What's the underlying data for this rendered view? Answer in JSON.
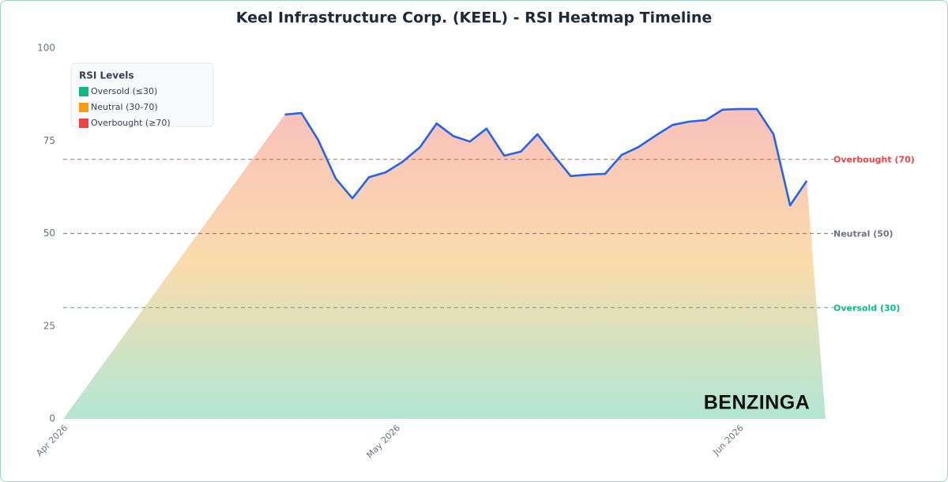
{
  "chart_data": {
    "type": "line",
    "title": "Keel Infrastructure Corp. (KEEL) - RSI Heatmap Timeline",
    "x": [
      20,
      21.5,
      23,
      24.6,
      26.1,
      27.6,
      29.1,
      30.6,
      32.2,
      33.7,
      35.2,
      36.7,
      38.2,
      39.8,
      41.3,
      42.8,
      44.3,
      45.8,
      47.4,
      48.9,
      50.4,
      51.9,
      53.4,
      55,
      56.5,
      58,
      59.5,
      61,
      62.6,
      64.1,
      65.6,
      67.1
    ],
    "values": [
      82.1,
      82.5,
      75.3,
      64.8,
      59.5,
      65.2,
      66.5,
      69.3,
      73.3,
      79.7,
      76.3,
      74.8,
      78.3,
      71.0,
      72.1,
      76.8,
      71.0,
      65.5,
      65.9,
      66.1,
      71.2,
      73.3,
      76.3,
      79.3,
      80.2,
      80.6,
      83.4,
      83.6,
      83.6,
      76.8,
      57.6,
      64.2
    ],
    "color": "#2563eb",
    "xlim": [
      0,
      68.8
    ],
    "xticks": [
      {
        "value": 0,
        "label": "Apr 2026"
      },
      {
        "value": 30,
        "label": "May 2026"
      },
      {
        "value": 61,
        "label": "Jun 2026"
      }
    ],
    "ylim": [
      0,
      100
    ],
    "yticks": [
      0,
      25,
      50,
      75,
      100
    ],
    "reference_lines": [
      {
        "value": 70,
        "label": "Overbought (70)",
        "color": "#ef4444"
      },
      {
        "value": 50,
        "label": "Neutral (50)",
        "color": "#6b7280"
      },
      {
        "value": 30,
        "label": "Oversold (30)",
        "color": "#10b981"
      }
    ],
    "legend": {
      "title": "RSI Levels",
      "position": "upper left",
      "items": [
        {
          "label": "Oversold (≤30)",
          "color": "#10b981"
        },
        {
          "label": "Neutral (30-70)",
          "color": "#f59e0b"
        },
        {
          "label": "Overbought (≥70)",
          "color": "#ef4444"
        }
      ]
    },
    "watermark": "BENZINGA"
  }
}
